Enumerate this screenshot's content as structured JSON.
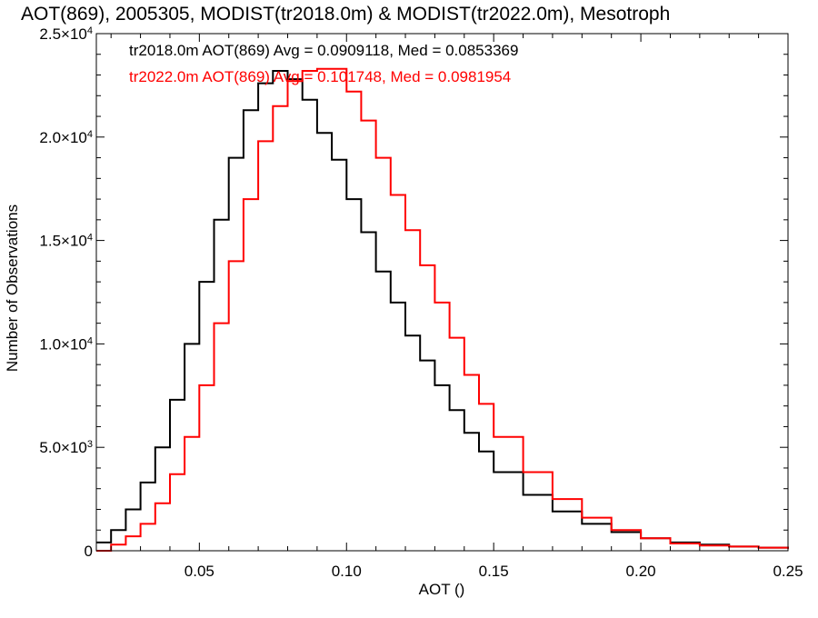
{
  "chart_data": {
    "type": "line",
    "title": "AOT(869), 2005305, MODIST(tr2018.0m) & MODIST(tr2022.0m), Mesotroph",
    "xlabel": "AOT ()",
    "ylabel": "Number of Observations",
    "xlim": [
      0.015,
      0.25
    ],
    "ylim": [
      0,
      25000
    ],
    "x_ticks": [
      {
        "value": 0.05,
        "label": "0.05"
      },
      {
        "value": 0.1,
        "label": "0.10"
      },
      {
        "value": 0.15,
        "label": "0.15"
      },
      {
        "value": 0.2,
        "label": "0.20"
      },
      {
        "value": 0.25,
        "label": "0.25"
      }
    ],
    "y_ticks": [
      {
        "value": 0,
        "mant": "0",
        "exp": ""
      },
      {
        "value": 5000,
        "mant": "5.0×10",
        "exp": "3"
      },
      {
        "value": 10000,
        "mant": "1.0×10",
        "exp": "4"
      },
      {
        "value": 15000,
        "mant": "1.5×10",
        "exp": "4"
      },
      {
        "value": 20000,
        "mant": "2.0×10",
        "exp": "4"
      },
      {
        "value": 25000,
        "mant": "2.5×10",
        "exp": "4"
      }
    ],
    "grid": false,
    "legend_position": "top-left",
    "series": [
      {
        "name": "tr2018.0m",
        "color": "#000000",
        "annotation": "tr2018.0m AOT(869) Avg = 0.0909118, Med = 0.0853369",
        "x": [
          0.015,
          0.02,
          0.025,
          0.03,
          0.035,
          0.04,
          0.045,
          0.05,
          0.055,
          0.06,
          0.065,
          0.07,
          0.075,
          0.08,
          0.085,
          0.09,
          0.095,
          0.1,
          0.105,
          0.11,
          0.115,
          0.12,
          0.125,
          0.13,
          0.135,
          0.14,
          0.145,
          0.15,
          0.16,
          0.17,
          0.18,
          0.19,
          0.2,
          0.21,
          0.22,
          0.23,
          0.24,
          0.25
        ],
        "values": [
          400,
          1000,
          2000,
          3300,
          5000,
          7300,
          10000,
          13000,
          16000,
          19000,
          21300,
          22600,
          23200,
          22800,
          21800,
          20200,
          18900,
          17000,
          15400,
          13500,
          12000,
          10400,
          9200,
          8000,
          6800,
          5700,
          4800,
          3800,
          2700,
          1900,
          1300,
          900,
          600,
          400,
          300,
          200,
          150,
          100
        ]
      },
      {
        "name": "tr2022.0m",
        "color": "#ff0000",
        "annotation": "tr2022.0m AOT(869) Avg = 0.101748, Med = 0.0981954",
        "x": [
          0.015,
          0.02,
          0.025,
          0.03,
          0.035,
          0.04,
          0.045,
          0.05,
          0.055,
          0.06,
          0.065,
          0.07,
          0.075,
          0.08,
          0.085,
          0.09,
          0.095,
          0.1,
          0.105,
          0.11,
          0.115,
          0.12,
          0.125,
          0.13,
          0.135,
          0.14,
          0.145,
          0.15,
          0.16,
          0.17,
          0.18,
          0.19,
          0.2,
          0.21,
          0.22,
          0.23,
          0.24,
          0.25
        ],
        "values": [
          0,
          300,
          700,
          1300,
          2300,
          3700,
          5500,
          8000,
          11000,
          14000,
          17000,
          19800,
          21500,
          22700,
          23200,
          23300,
          23300,
          22200,
          20800,
          19000,
          17200,
          15500,
          13800,
          12000,
          10300,
          8500,
          7100,
          5500,
          3800,
          2500,
          1600,
          1000,
          600,
          350,
          250,
          200,
          150,
          100
        ]
      }
    ]
  }
}
